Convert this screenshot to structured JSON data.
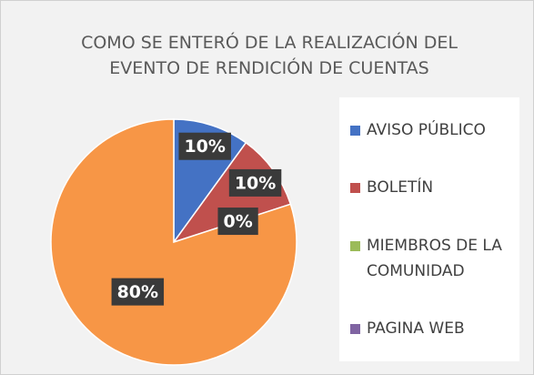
{
  "chart_data": {
    "type": "pie",
    "title": "COMO SE ENTERÓ DE LA REALIZACIÓN DEL EVENTO DE RENDICIÓN DE CUENTAS",
    "categories": [
      "AVISO PÚBLICO",
      "BOLETÍN",
      "MIEMBROS DE LA COMUNIDAD",
      "PAGINA WEB"
    ],
    "values": [
      10,
      10,
      0,
      80
    ],
    "value_labels": [
      "10%",
      "10%",
      "0%",
      "80%"
    ],
    "colors": [
      "#4472c4",
      "#c0504d",
      "#9bbb59",
      "#f79646"
    ],
    "legend_colors": [
      "#4472c4",
      "#c0504d",
      "#9bbb59",
      "#8064a2"
    ],
    "legend": "right"
  }
}
